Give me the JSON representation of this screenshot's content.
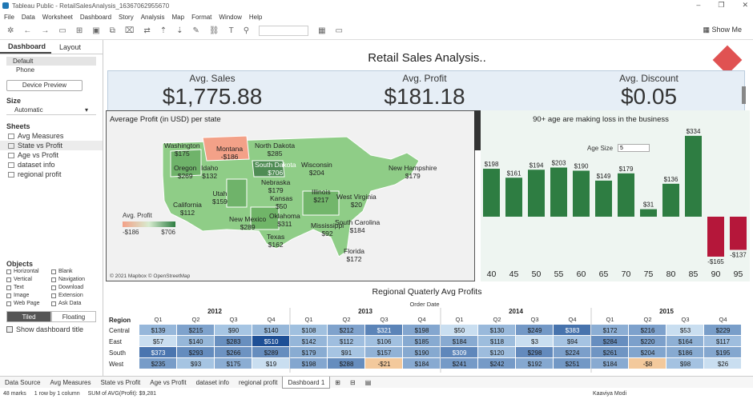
{
  "window": {
    "title": "Tableau Public - RetailSalesAnalysis_16367062955670"
  },
  "menu": [
    "File",
    "Data",
    "Worksheet",
    "Dashboard",
    "Story",
    "Analysis",
    "Map",
    "Format",
    "Window",
    "Help"
  ],
  "toolbar": {
    "show_me": "Show Me"
  },
  "sidebar": {
    "tab_dashboard": "Dashboard",
    "tab_layout": "Layout",
    "devices": [
      "Default",
      "Phone"
    ],
    "device_preview": "Device Preview",
    "size_heading": "Size",
    "size_value": "Automatic",
    "sheets_heading": "Sheets",
    "sheets": [
      "Avg Measures",
      "State vs Profit",
      "Age vs Profit",
      "dataset info",
      "regional profit"
    ],
    "objects_heading": "Objects",
    "objects": [
      "Horizontal",
      "Blank",
      "Vertical",
      "Navigation",
      "Text",
      "Download",
      "Image",
      "Extension",
      "Web Page",
      "Ask Data"
    ],
    "tiled": "Tiled",
    "floating": "Floating",
    "show_title": "Show dashboard title"
  },
  "dashboard": {
    "title": "Retail Sales Analysis..",
    "kpis": [
      {
        "label": "Avg. Sales",
        "value": "$1,775.88"
      },
      {
        "label": "Avg. Profit",
        "value": "$181.18"
      },
      {
        "label": "Avg. Discount",
        "value": "$0.05"
      }
    ]
  },
  "map": {
    "title": "Average Profit (in USD) per state",
    "legend_title": "Avg. Profit",
    "legend_min": "-$186",
    "legend_max": "$706",
    "attribution": "© 2021 Mapbox © OpenStreetMap",
    "states": [
      {
        "name": "Washington",
        "value": "$175"
      },
      {
        "name": "Montana",
        "value": "-$186"
      },
      {
        "name": "North Dakota",
        "value": "$285"
      },
      {
        "name": "Oregon",
        "value": "$269"
      },
      {
        "name": "Idaho",
        "value": "$132"
      },
      {
        "name": "South Dakota",
        "value": "$706"
      },
      {
        "name": "Wisconsin",
        "value": "$204"
      },
      {
        "name": "Nebraska",
        "value": "$179"
      },
      {
        "name": "Illinois",
        "value": "$217"
      },
      {
        "name": "Utah",
        "value": "$159"
      },
      {
        "name": "Kansas",
        "value": "$50"
      },
      {
        "name": "California",
        "value": "$112"
      },
      {
        "name": "West Virginia",
        "value": "$20"
      },
      {
        "name": "New Hampshire",
        "value": "$179"
      },
      {
        "name": "New Mexico",
        "value": "$289"
      },
      {
        "name": "Oklahoma",
        "value": "$311"
      },
      {
        "name": "Mississippi",
        "value": "$92"
      },
      {
        "name": "South Carolina",
        "value": "$184"
      },
      {
        "name": "Texas",
        "value": "$162"
      },
      {
        "name": "Florida",
        "value": "$172"
      }
    ]
  },
  "age_chart": {
    "title": "90+ age are making loss in the business",
    "age_size_label": "Age Size",
    "age_size_value": "5"
  },
  "chart_data": {
    "type": "bar",
    "categories": [
      "40",
      "45",
      "50",
      "55",
      "60",
      "65",
      "70",
      "75",
      "80",
      "85",
      "90",
      "95"
    ],
    "values": [
      198,
      161,
      194,
      203,
      190,
      149,
      179,
      31,
      136,
      334,
      -165,
      -137
    ],
    "labels": [
      "$198",
      "$161",
      "$194",
      "$203",
      "$190",
      "$149",
      "$179",
      "$31",
      "$136",
      "$334",
      "-$165",
      "-$137"
    ],
    "title": "90+ age are making loss in the business",
    "ylim": [
      -200,
      360
    ],
    "colors": {
      "positive": "#2e7d42",
      "negative": "#b5173a"
    }
  },
  "regional": {
    "title": "Regional Quaterly Avg Profits",
    "order_date": "Order Date",
    "region_header": "Region",
    "years": [
      "2012",
      "2013",
      "2014",
      "2015"
    ],
    "quarters": [
      "Q1",
      "Q2",
      "Q3",
      "Q4"
    ],
    "rows": [
      {
        "region": "Central",
        "cells": [
          "$139",
          "$215",
          "$90",
          "$140",
          "$108",
          "$212",
          "$321",
          "$198",
          "$50",
          "$130",
          "$249",
          "$383",
          "$172",
          "$216",
          "$53",
          "$229"
        ]
      },
      {
        "region": "East",
        "cells": [
          "$57",
          "$140",
          "$283",
          "$510",
          "$142",
          "$112",
          "$106",
          "$185",
          "$184",
          "$118",
          "$3",
          "$94",
          "$284",
          "$220",
          "$164",
          "$117"
        ]
      },
      {
        "region": "South",
        "cells": [
          "$373",
          "$293",
          "$266",
          "$289",
          "$179",
          "$91",
          "$157",
          "$190",
          "$309",
          "$120",
          "$298",
          "$224",
          "$261",
          "$204",
          "$186",
          "$195"
        ]
      },
      {
        "region": "West",
        "cells": [
          "$235",
          "$93",
          "$175",
          "$19",
          "$198",
          "$288",
          "-$21",
          "$184",
          "$241",
          "$242",
          "$192",
          "$251",
          "$184",
          "-$8",
          "$98",
          "$26"
        ]
      }
    ]
  },
  "tabs_bottom": [
    "Data Source",
    "Avg Measures",
    "State vs Profit",
    "Age vs Profit",
    "dataset info",
    "regional profit",
    "Dashboard 1"
  ],
  "status": {
    "marks": "48 marks",
    "rows": "1 row by 1 column",
    "sum": "SUM of AVG(Profit): $9,281",
    "user": "Kaaviya Modi"
  }
}
